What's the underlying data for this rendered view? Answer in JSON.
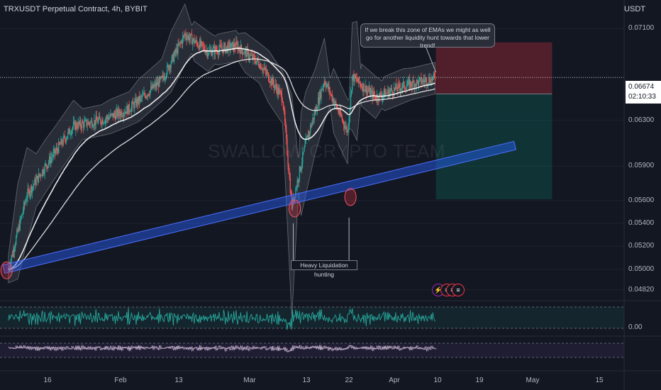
{
  "header": {
    "title": "TRXUSDT Perpetual Contract, 4h, BYBIT",
    "currency": "USDT"
  },
  "watermark": "SWALLOW CRYPTO TEAM",
  "price_tag": {
    "price": "0.06674",
    "countdown": "02:10:33"
  },
  "annotations": {
    "callout": "If we break this zone of EMAs we might as well go for another liquidity hunt towards that lower trend!",
    "liquidation_label": "Heavy Liquidation hunting"
  },
  "rsi_panel": {
    "zero_label": "0.00"
  },
  "event_badges": {
    "lightning_icon": "lightning-icon",
    "flag_icon": "us-flag-icon"
  },
  "colors": {
    "background": "#131722",
    "up": "#26a69a",
    "down": "#ef5350",
    "trendline": "#2962ff",
    "stop_zone": "#f23645",
    "target_zone": "#089981",
    "ema": "#ffffff",
    "oscillator": "#26a69a"
  },
  "chart_data": {
    "type": "candlestick",
    "title": "TRXUSDT Perpetual Contract, 4h, BYBIT",
    "ylabel": "USDT",
    "ylim": [
      0.0475,
      0.0735
    ],
    "y_ticks": [
      "0.07100",
      "0.06674",
      "0.06300",
      "0.05900",
      "0.05600",
      "0.05400",
      "0.05200",
      "0.05000",
      "0.04820"
    ],
    "x_ticks": [
      "16",
      "Feb",
      "13",
      "Mar",
      "13",
      "22",
      "Apr",
      "10",
      "19",
      "May",
      "15"
    ],
    "approx_close_path": [
      {
        "x": "Jan 8",
        "y": 0.05
      },
      {
        "x": "Jan 12",
        "y": 0.0565
      },
      {
        "x": "Jan 16",
        "y": 0.059
      },
      {
        "x": "Jan 22",
        "y": 0.0625
      },
      {
        "x": "Jan 28",
        "y": 0.063
      },
      {
        "x": "Feb 3",
        "y": 0.064
      },
      {
        "x": "Feb 10",
        "y": 0.0665
      },
      {
        "x": "Feb 15",
        "y": 0.0705
      },
      {
        "x": "Feb 20",
        "y": 0.069
      },
      {
        "x": "Feb 26",
        "y": 0.0695
      },
      {
        "x": "Mar 3",
        "y": 0.068
      },
      {
        "x": "Mar 8",
        "y": 0.065
      },
      {
        "x": "Mar 10",
        "y": 0.0555
      },
      {
        "x": "Mar 13",
        "y": 0.061
      },
      {
        "x": "Mar 17",
        "y": 0.0665
      },
      {
        "x": "Mar 22",
        "y": 0.062
      },
      {
        "x": "Mar 23",
        "y": 0.0668
      },
      {
        "x": "Mar 28",
        "y": 0.065
      },
      {
        "x": "Apr 3",
        "y": 0.066
      },
      {
        "x": "Apr 10",
        "y": 0.0667
      }
    ],
    "position": {
      "entry": 0.0653,
      "stop": 0.0698,
      "target": 0.0561,
      "start": "Apr 10",
      "end": "May 5"
    },
    "trendline": {
      "from": {
        "x": "Jan 7",
        "y": 0.05
      },
      "to": {
        "x": "Apr 27",
        "y": 0.0608
      }
    },
    "legend": "none"
  }
}
